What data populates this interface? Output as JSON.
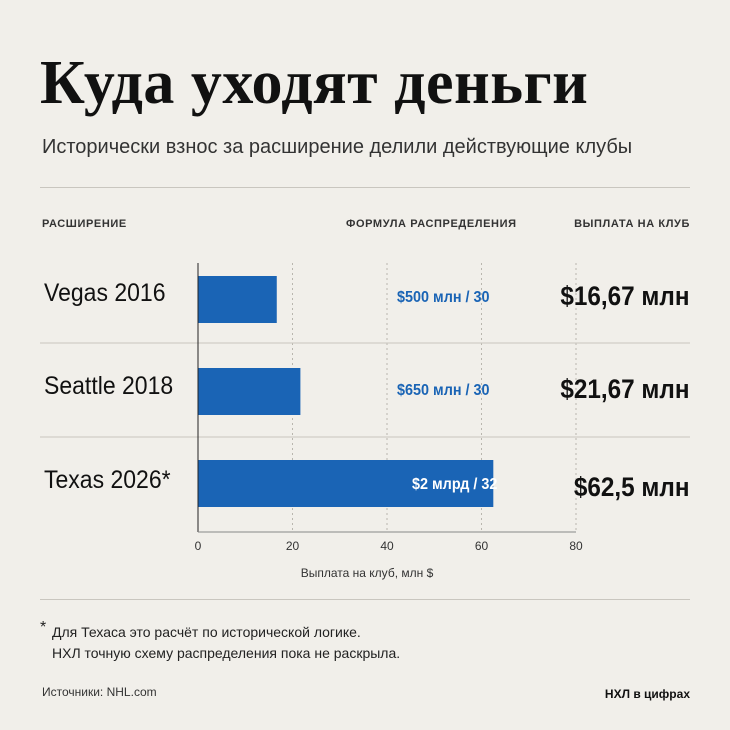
{
  "title": "Куда уходят деньги",
  "subtitle": "Исторически взнос за расширение делили действующие клубы",
  "columns": {
    "expansion": "РАСШИРЕНИЕ",
    "formula": "ФОРМУЛА РАСПРЕДЕЛЕНИЯ",
    "payout": "ВЫПЛАТА НА КЛУБ"
  },
  "rows": [
    {
      "label": "Vegas 2016",
      "formula": "$500 млн / 30",
      "payout": "$16,67 млн"
    },
    {
      "label": "Seattle 2018",
      "formula": "$650 млн / 30",
      "payout": "$21,67 млн"
    },
    {
      "label": "Texas 2026*",
      "formula": "$2 млрд / 32",
      "payout": "$62,5 млн"
    }
  ],
  "chart_data": {
    "type": "bar",
    "orientation": "horizontal",
    "categories": [
      "Vegas 2016",
      "Seattle 2018",
      "Texas 2026*"
    ],
    "values": [
      16.67,
      21.67,
      62.5
    ],
    "xlabel": "Выплата на клуб, млн $",
    "xlim": [
      0,
      80
    ],
    "xticks": [
      0,
      20,
      40,
      60,
      80
    ],
    "grid": "vertical dotted",
    "bar_color": "#1a64b5"
  },
  "colors": {
    "bar": "#1a64b5",
    "formula_on_bg": "#1a64b5",
    "formula_on_bar": "#ffffff",
    "grid": "#b9b6ae",
    "background": "#f1efea"
  },
  "footnote": {
    "star": "*",
    "line1": "Для Техаса это расчёт по исторической логике.",
    "line2": "НХЛ точную схему распределения пока не раскрыла."
  },
  "sources": "Источники: NHL.com",
  "brand": "НХЛ в цифрах"
}
